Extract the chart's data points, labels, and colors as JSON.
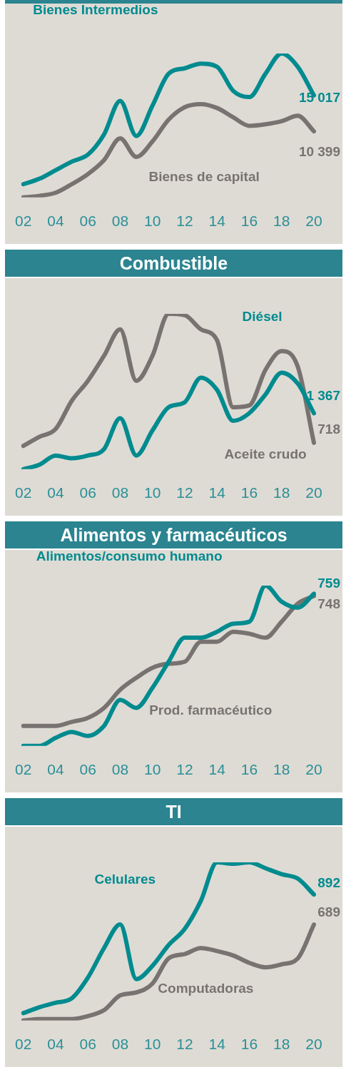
{
  "chart_data": [
    {
      "type": "line",
      "categories": [
        "02",
        null,
        "04",
        null,
        "06",
        null,
        "08",
        null,
        "10",
        null,
        "12",
        null,
        "14",
        null,
        "16",
        null,
        "18",
        null,
        "20"
      ],
      "series": [
        {
          "name": "Bienes Intermedios",
          "color": "#008b8f",
          "values": [
            3600,
            4300,
            5400,
            6500,
            7400,
            10000,
            14300,
            9800,
            13700,
            17800,
            18500,
            19100,
            18700,
            15600,
            14800,
            17800,
            20400,
            18700,
            15017
          ],
          "value_labels": [
            null,
            null,
            null,
            null,
            null,
            null,
            null,
            null,
            null,
            null,
            null,
            null,
            null,
            null,
            null,
            null,
            null,
            null,
            "15 017"
          ]
        },
        {
          "name": "Bienes de capital",
          "color": "#787370",
          "values": [
            1900,
            2100,
            2500,
            3600,
            4900,
            6700,
            9500,
            7100,
            9100,
            11900,
            13500,
            13900,
            13400,
            12200,
            11100,
            11300,
            11700,
            12400,
            10399
          ],
          "value_labels": [
            null,
            null,
            null,
            null,
            null,
            null,
            null,
            null,
            null,
            null,
            null,
            null,
            null,
            null,
            null,
            null,
            null,
            null,
            "10 399"
          ]
        }
      ]
    },
    {
      "type": "line",
      "title": "Combustible",
      "categories": [
        "02",
        null,
        "04",
        null,
        "06",
        null,
        "08",
        null,
        "10",
        null,
        "12",
        null,
        "14",
        null,
        "16",
        null,
        "18",
        null,
        "20"
      ],
      "series": [
        {
          "name": "Diésel",
          "color": "#008b8f",
          "values": [
            140,
            240,
            440,
            380,
            440,
            580,
            1260,
            440,
            990,
            1500,
            1610,
            2150,
            1880,
            1200,
            1370,
            1780,
            2260,
            2020,
            1367
          ],
          "value_labels": [
            null,
            null,
            null,
            null,
            null,
            null,
            null,
            null,
            null,
            null,
            null,
            null,
            null,
            null,
            null,
            null,
            null,
            null,
            "1 367"
          ]
        },
        {
          "name": "Aceite crudo",
          "color": "#787370",
          "values": [
            650,
            850,
            1020,
            1640,
            2080,
            2630,
            3210,
            2080,
            2630,
            3550,
            3520,
            3210,
            2970,
            1500,
            1540,
            2320,
            2730,
            2390,
            718
          ],
          "value_labels": [
            null,
            null,
            null,
            null,
            null,
            null,
            null,
            null,
            null,
            null,
            null,
            null,
            null,
            null,
            null,
            null,
            null,
            null,
            "718"
          ]
        }
      ]
    },
    {
      "type": "line",
      "title": "Alimentos y farmacéuticos",
      "categories": [
        "02",
        null,
        "04",
        null,
        "06",
        null,
        "08",
        null,
        "10",
        null,
        "12",
        null,
        "14",
        null,
        "16",
        null,
        "18",
        null,
        "20"
      ],
      "series": [
        {
          "name": "Alimentos/consumo humano",
          "color": "#008b8f",
          "values": [
            0,
            0,
            40,
            70,
            50,
            100,
            230,
            190,
            290,
            420,
            540,
            540,
            570,
            610,
            620,
            800,
            720,
            690,
            759
          ],
          "value_labels": [
            null,
            null,
            null,
            null,
            null,
            null,
            null,
            null,
            null,
            null,
            null,
            null,
            null,
            null,
            null,
            null,
            null,
            null,
            "759"
          ]
        },
        {
          "name": "Prod. farmacéutico",
          "color": "#787370",
          "values": [
            100,
            100,
            100,
            120,
            140,
            190,
            280,
            340,
            390,
            410,
            420,
            520,
            520,
            570,
            560,
            540,
            620,
            710,
            748
          ],
          "value_labels": [
            null,
            null,
            null,
            null,
            null,
            null,
            null,
            null,
            null,
            null,
            null,
            null,
            null,
            null,
            null,
            null,
            null,
            null,
            "748"
          ]
        }
      ]
    },
    {
      "type": "line",
      "title": "TI",
      "categories": [
        "02",
        null,
        "04",
        null,
        "06",
        null,
        "08",
        null,
        "10",
        null,
        "12",
        null,
        "14",
        null,
        "16",
        null,
        "18",
        null,
        "20"
      ],
      "series": [
        {
          "name": "Celulares",
          "color": "#008b8f",
          "values": [
            90,
            130,
            160,
            190,
            330,
            530,
            690,
            320,
            410,
            550,
            660,
            850,
            1110,
            1100,
            1110,
            1070,
            1030,
            1000,
            892
          ],
          "value_labels": [
            null,
            null,
            null,
            null,
            null,
            null,
            null,
            null,
            null,
            null,
            null,
            null,
            null,
            null,
            null,
            null,
            null,
            null,
            "892"
          ]
        },
        {
          "name": "Computadoras",
          "color": "#787370",
          "values": [
            40,
            50,
            50,
            50,
            70,
            110,
            210,
            230,
            290,
            460,
            490,
            530,
            510,
            480,
            430,
            400,
            420,
            460,
            689
          ],
          "value_labels": [
            null,
            null,
            null,
            null,
            null,
            null,
            null,
            null,
            null,
            null,
            null,
            null,
            null,
            null,
            null,
            null,
            null,
            null,
            "689"
          ]
        }
      ]
    }
  ]
}
